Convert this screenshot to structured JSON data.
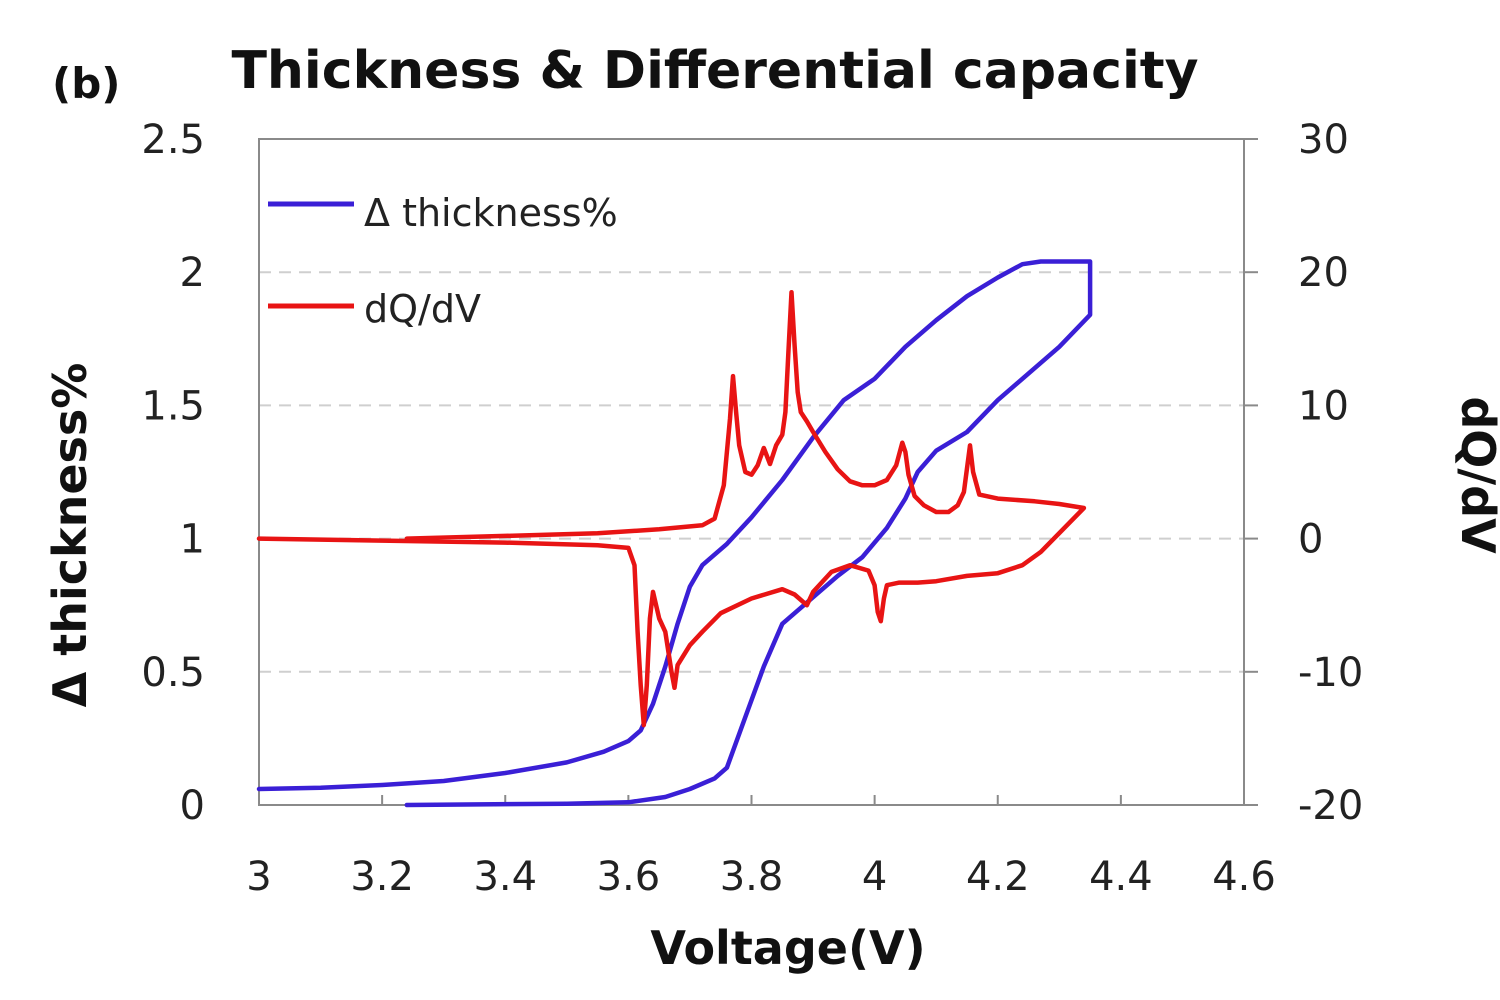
{
  "panel_label": "(b)",
  "chart_data": {
    "type": "line",
    "title": "Thickness & Differential capacity",
    "xlabel": "Voltage(V)",
    "ylabel_left": "Δ thickness%",
    "ylabel_right": "dQ/dV",
    "xlim": [
      3,
      4.6
    ],
    "ylim_left": [
      0,
      2.5
    ],
    "ylim_right": [
      -20,
      30
    ],
    "x_ticks": [
      "3",
      "3.2",
      "3.4",
      "3.6",
      "3.8",
      "4",
      "4.2",
      "4.4",
      "4.6"
    ],
    "y_left_ticks": [
      "0",
      "0.5",
      "1",
      "1.5",
      "2",
      "2.5"
    ],
    "y_right_ticks": [
      "-20",
      "-10",
      "0",
      "10",
      "20",
      "30"
    ],
    "grid": "horizontal dashed",
    "legend_position": "top-left",
    "series": [
      {
        "name": "Δ thickness%",
        "axis": "left",
        "color": "#3a1fd6",
        "points": [
          [
            3.0,
            0.06
          ],
          [
            3.1,
            0.065
          ],
          [
            3.2,
            0.075
          ],
          [
            3.3,
            0.09
          ],
          [
            3.4,
            0.12
          ],
          [
            3.5,
            0.16
          ],
          [
            3.56,
            0.2
          ],
          [
            3.6,
            0.24
          ],
          [
            3.62,
            0.28
          ],
          [
            3.64,
            0.38
          ],
          [
            3.66,
            0.52
          ],
          [
            3.68,
            0.68
          ],
          [
            3.7,
            0.82
          ],
          [
            3.72,
            0.9
          ],
          [
            3.76,
            0.98
          ],
          [
            3.8,
            1.08
          ],
          [
            3.85,
            1.22
          ],
          [
            3.9,
            1.38
          ],
          [
            3.95,
            1.52
          ],
          [
            4.0,
            1.6
          ],
          [
            4.05,
            1.72
          ],
          [
            4.1,
            1.82
          ],
          [
            4.15,
            1.91
          ],
          [
            4.2,
            1.98
          ],
          [
            4.24,
            2.03
          ],
          [
            4.27,
            2.04
          ],
          [
            4.35,
            2.04
          ],
          [
            4.35,
            1.84
          ],
          [
            4.3,
            1.72
          ],
          [
            4.2,
            1.52
          ],
          [
            4.15,
            1.4
          ],
          [
            4.1,
            1.33
          ],
          [
            4.07,
            1.25
          ],
          [
            4.05,
            1.15
          ],
          [
            4.02,
            1.04
          ],
          [
            3.98,
            0.93
          ],
          [
            3.94,
            0.86
          ],
          [
            3.9,
            0.78
          ],
          [
            3.87,
            0.72
          ],
          [
            3.85,
            0.68
          ],
          [
            3.82,
            0.52
          ],
          [
            3.79,
            0.33
          ],
          [
            3.76,
            0.14
          ],
          [
            3.74,
            0.1
          ],
          [
            3.7,
            0.06
          ],
          [
            3.66,
            0.03
          ],
          [
            3.6,
            0.01
          ],
          [
            3.5,
            0.005
          ],
          [
            3.24,
            0.0
          ]
        ]
      },
      {
        "name": "dQ/dV",
        "axis": "right",
        "color": "#e81414",
        "points": [
          [
            3.24,
            0.0
          ],
          [
            3.4,
            0.2
          ],
          [
            3.55,
            0.4
          ],
          [
            3.65,
            0.7
          ],
          [
            3.72,
            1.0
          ],
          [
            3.74,
            1.5
          ],
          [
            3.755,
            4.0
          ],
          [
            3.765,
            9.0
          ],
          [
            3.77,
            12.2
          ],
          [
            3.775,
            9.5
          ],
          [
            3.78,
            7.0
          ],
          [
            3.79,
            5.0
          ],
          [
            3.8,
            4.8
          ],
          [
            3.81,
            5.5
          ],
          [
            3.82,
            6.8
          ],
          [
            3.83,
            5.6
          ],
          [
            3.84,
            7.0
          ],
          [
            3.85,
            7.8
          ],
          [
            3.855,
            9.5
          ],
          [
            3.86,
            14.0
          ],
          [
            3.865,
            18.5
          ],
          [
            3.87,
            14.5
          ],
          [
            3.875,
            11.0
          ],
          [
            3.88,
            9.5
          ],
          [
            3.89,
            8.8
          ],
          [
            3.9,
            8.0
          ],
          [
            3.92,
            6.5
          ],
          [
            3.94,
            5.2
          ],
          [
            3.96,
            4.3
          ],
          [
            3.98,
            4.0
          ],
          [
            4.0,
            4.0
          ],
          [
            4.02,
            4.4
          ],
          [
            4.035,
            5.5
          ],
          [
            4.045,
            7.2
          ],
          [
            4.05,
            6.5
          ],
          [
            4.055,
            4.8
          ],
          [
            4.065,
            3.2
          ],
          [
            4.08,
            2.5
          ],
          [
            4.1,
            2.0
          ],
          [
            4.12,
            2.0
          ],
          [
            4.135,
            2.5
          ],
          [
            4.145,
            3.5
          ],
          [
            4.155,
            7.0
          ],
          [
            4.16,
            5.0
          ],
          [
            4.17,
            3.3
          ],
          [
            4.2,
            3.0
          ],
          [
            4.26,
            2.8
          ],
          [
            4.3,
            2.6
          ],
          [
            4.34,
            2.3
          ],
          [
            4.27,
            -1.0
          ],
          [
            4.24,
            -2.0
          ],
          [
            4.2,
            -2.6
          ],
          [
            4.15,
            -2.8
          ],
          [
            4.1,
            -3.2
          ],
          [
            4.07,
            -3.3
          ],
          [
            4.04,
            -3.3
          ],
          [
            4.02,
            -3.5
          ],
          [
            4.015,
            -4.5
          ],
          [
            4.01,
            -6.2
          ],
          [
            4.005,
            -5.5
          ],
          [
            4.0,
            -3.5
          ],
          [
            3.99,
            -2.4
          ],
          [
            3.96,
            -2.0
          ],
          [
            3.93,
            -2.5
          ],
          [
            3.9,
            -4.0
          ],
          [
            3.89,
            -5.0
          ],
          [
            3.87,
            -4.2
          ],
          [
            3.85,
            -3.8
          ],
          [
            3.8,
            -4.5
          ],
          [
            3.75,
            -5.6
          ],
          [
            3.72,
            -7.0
          ],
          [
            3.7,
            -8.0
          ],
          [
            3.68,
            -9.5
          ],
          [
            3.675,
            -11.2
          ],
          [
            3.67,
            -10.0
          ],
          [
            3.66,
            -7.0
          ],
          [
            3.65,
            -6.0
          ],
          [
            3.64,
            -4.0
          ],
          [
            3.635,
            -6.0
          ],
          [
            3.63,
            -11.0
          ],
          [
            3.625,
            -14.0
          ],
          [
            3.62,
            -11.0
          ],
          [
            3.615,
            -7.0
          ],
          [
            3.61,
            -2.0
          ],
          [
            3.6,
            -0.7
          ],
          [
            3.55,
            -0.5
          ],
          [
            3.4,
            -0.3
          ],
          [
            3.2,
            -0.15
          ],
          [
            3.0,
            0.0
          ]
        ]
      }
    ]
  }
}
